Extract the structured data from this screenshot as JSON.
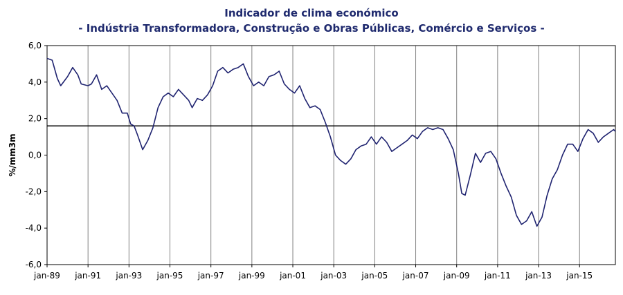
{
  "chart_data": {
    "type": "line",
    "title": "Indicador de clima económico",
    "subtitle": "- Indústria Transformadora, Construção e Obras Públicas, Comércio e Serviços -",
    "xlabel": "",
    "ylabel": "%/mm3m",
    "ylim": [
      -6,
      6
    ],
    "xlim": [
      "1989-01",
      "2016-10"
    ],
    "y_ticks": [
      "6,0",
      "4,0",
      "2,0",
      "0,0",
      "-2,0",
      "-4,0",
      "-6,0"
    ],
    "x_ticks": [
      "jan-89",
      "jan-91",
      "jan-93",
      "jan-95",
      "jan-97",
      "jan-99",
      "jan-01",
      "jan-03",
      "jan-05",
      "jan-07",
      "jan-09",
      "jan-11",
      "jan-13",
      "jan-15"
    ],
    "grid": "vertical",
    "reference_line": 1.6,
    "colors": {
      "series": "#1f2370",
      "reference": "#000000",
      "grid": "#808080",
      "title": "#1f2a6e"
    },
    "series": [
      {
        "points": [
          [
            "1989-01",
            5.3
          ],
          [
            "1989-04",
            5.2
          ],
          [
            "1989-07",
            4.2
          ],
          [
            "1989-09",
            3.8
          ],
          [
            "1990-01",
            4.3
          ],
          [
            "1990-04",
            4.8
          ],
          [
            "1990-07",
            4.4
          ],
          [
            "1990-09",
            3.9
          ],
          [
            "1991-01",
            3.8
          ],
          [
            "1991-03",
            3.9
          ],
          [
            "1991-06",
            4.4
          ],
          [
            "1991-09",
            3.6
          ],
          [
            "1991-12",
            3.8
          ],
          [
            "1992-03",
            3.4
          ],
          [
            "1992-06",
            3.0
          ],
          [
            "1992-09",
            2.3
          ],
          [
            "1992-12",
            2.3
          ],
          [
            "1993-02",
            1.7
          ],
          [
            "1993-04",
            1.6
          ],
          [
            "1993-06",
            1.1
          ],
          [
            "1993-09",
            0.3
          ],
          [
            "1993-12",
            0.8
          ],
          [
            "1994-03",
            1.5
          ],
          [
            "1994-06",
            2.6
          ],
          [
            "1994-09",
            3.2
          ],
          [
            "1994-12",
            3.4
          ],
          [
            "1995-03",
            3.2
          ],
          [
            "1995-06",
            3.6
          ],
          [
            "1995-09",
            3.3
          ],
          [
            "1995-12",
            3.0
          ],
          [
            "1996-02",
            2.6
          ],
          [
            "1996-05",
            3.1
          ],
          [
            "1996-08",
            3.0
          ],
          [
            "1996-11",
            3.3
          ],
          [
            "1997-02",
            3.8
          ],
          [
            "1997-05",
            4.6
          ],
          [
            "1997-08",
            4.8
          ],
          [
            "1997-11",
            4.5
          ],
          [
            "1998-02",
            4.7
          ],
          [
            "1998-05",
            4.8
          ],
          [
            "1998-08",
            5.0
          ],
          [
            "1998-11",
            4.3
          ],
          [
            "1999-02",
            3.8
          ],
          [
            "1999-05",
            4.0
          ],
          [
            "1999-08",
            3.8
          ],
          [
            "1999-11",
            4.3
          ],
          [
            "2000-02",
            4.4
          ],
          [
            "2000-05",
            4.6
          ],
          [
            "2000-08",
            3.9
          ],
          [
            "2000-11",
            3.6
          ],
          [
            "2001-02",
            3.4
          ],
          [
            "2001-05",
            3.8
          ],
          [
            "2001-08",
            3.1
          ],
          [
            "2001-11",
            2.6
          ],
          [
            "2002-02",
            2.7
          ],
          [
            "2002-05",
            2.5
          ],
          [
            "2002-08",
            1.8
          ],
          [
            "2002-11",
            1.0
          ],
          [
            "2003-02",
            0.0
          ],
          [
            "2003-05",
            -0.3
          ],
          [
            "2003-08",
            -0.5
          ],
          [
            "2003-11",
            -0.2
          ],
          [
            "2004-02",
            0.3
          ],
          [
            "2004-05",
            0.5
          ],
          [
            "2004-08",
            0.6
          ],
          [
            "2004-11",
            1.0
          ],
          [
            "2005-02",
            0.6
          ],
          [
            "2005-05",
            1.0
          ],
          [
            "2005-08",
            0.7
          ],
          [
            "2005-11",
            0.2
          ],
          [
            "2006-02",
            0.4
          ],
          [
            "2006-05",
            0.6
          ],
          [
            "2006-08",
            0.8
          ],
          [
            "2006-11",
            1.1
          ],
          [
            "2007-02",
            0.9
          ],
          [
            "2007-05",
            1.3
          ],
          [
            "2007-08",
            1.5
          ],
          [
            "2007-11",
            1.4
          ],
          [
            "2008-02",
            1.5
          ],
          [
            "2008-05",
            1.4
          ],
          [
            "2008-08",
            0.9
          ],
          [
            "2008-11",
            0.3
          ],
          [
            "2009-02",
            -1.0
          ],
          [
            "2009-04",
            -2.1
          ],
          [
            "2009-06",
            -2.2
          ],
          [
            "2009-09",
            -1.1
          ],
          [
            "2009-12",
            0.1
          ],
          [
            "2010-03",
            -0.4
          ],
          [
            "2010-06",
            0.1
          ],
          [
            "2010-09",
            0.2
          ],
          [
            "2010-12",
            -0.2
          ],
          [
            "2011-03",
            -1.0
          ],
          [
            "2011-06",
            -1.7
          ],
          [
            "2011-09",
            -2.3
          ],
          [
            "2011-12",
            -3.3
          ],
          [
            "2012-03",
            -3.8
          ],
          [
            "2012-06",
            -3.6
          ],
          [
            "2012-09",
            -3.1
          ],
          [
            "2012-12",
            -3.9
          ],
          [
            "2013-03",
            -3.4
          ],
          [
            "2013-06",
            -2.2
          ],
          [
            "2013-09",
            -1.3
          ],
          [
            "2013-12",
            -0.8
          ],
          [
            "2014-03",
            0.0
          ],
          [
            "2014-06",
            0.6
          ],
          [
            "2014-09",
            0.6
          ],
          [
            "2014-12",
            0.2
          ],
          [
            "2015-03",
            0.9
          ],
          [
            "2015-06",
            1.4
          ],
          [
            "2015-09",
            1.2
          ],
          [
            "2015-12",
            0.7
          ],
          [
            "2016-03",
            1.0
          ],
          [
            "2016-06",
            1.2
          ],
          [
            "2016-09",
            1.4
          ],
          [
            "2016-10",
            1.3
          ]
        ]
      }
    ]
  }
}
